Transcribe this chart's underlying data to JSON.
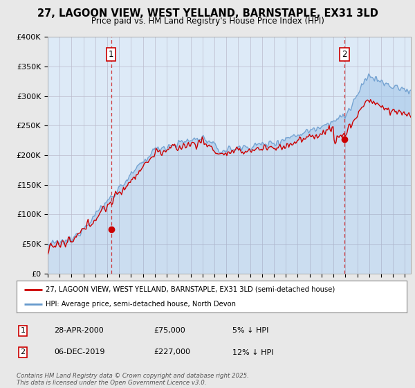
{
  "title_line1": "27, LAGOON VIEW, WEST YELLAND, BARNSTAPLE, EX31 3LD",
  "title_line2": "Price paid vs. HM Land Registry's House Price Index (HPI)",
  "background_color": "#e8e8e8",
  "plot_bg_color": "#ddeaf7",
  "red_line_color": "#cc0000",
  "blue_line_color": "#6699cc",
  "legend_label_red": "27, LAGOON VIEW, WEST YELLAND, BARNSTAPLE, EX31 3LD (semi-detached house)",
  "legend_label_blue": "HPI: Average price, semi-detached house, North Devon",
  "annotation1_date": "28-APR-2000",
  "annotation1_price": "£75,000",
  "annotation1_hpi": "5% ↓ HPI",
  "annotation2_date": "06-DEC-2019",
  "annotation2_price": "£227,000",
  "annotation2_hpi": "12% ↓ HPI",
  "footer": "Contains HM Land Registry data © Crown copyright and database right 2025.\nThis data is licensed under the Open Government Licence v3.0.",
  "ylim": [
    0,
    400000
  ],
  "yticks": [
    0,
    50000,
    100000,
    150000,
    200000,
    250000,
    300000,
    350000,
    400000
  ],
  "sale1_x": 2000.32,
  "sale1_y": 75000,
  "sale2_x": 2019.92,
  "sale2_y": 227000,
  "xmin": 1995,
  "xmax": 2025.5
}
